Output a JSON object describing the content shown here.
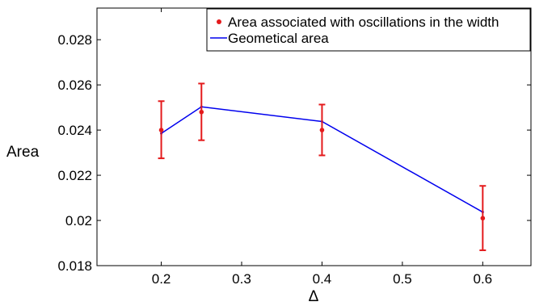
{
  "chart_data": {
    "type": "scatter",
    "xlabel": "Δ",
    "ylabel": "Area",
    "xlim": [
      0.12,
      0.66
    ],
    "ylim": [
      0.018,
      0.0294
    ],
    "x_ticks": [
      0.2,
      0.3,
      0.4,
      0.5,
      0.6
    ],
    "x_tick_labels": [
      "0.2",
      "0.3",
      "0.4",
      "0.5",
      "0.6"
    ],
    "y_ticks": [
      0.018,
      0.02,
      0.022,
      0.024,
      0.026,
      0.028
    ],
    "y_tick_labels": [
      "0.018",
      "0.02",
      "0.022",
      "0.024",
      "0.026",
      "0.028"
    ],
    "grid": false,
    "legend_position": "top-right",
    "series": [
      {
        "name": "Area associated with oscillations in the width",
        "kind": "points-with-error-bars",
        "color": "#e41a1c",
        "x": [
          0.2,
          0.25,
          0.4,
          0.6
        ],
        "y": [
          0.024,
          0.0248,
          0.024,
          0.0201
        ],
        "y_err_low": [
          0.02275,
          0.02355,
          0.02288,
          0.01868
        ],
        "y_err_high": [
          0.02528,
          0.02606,
          0.02513,
          0.02153
        ]
      },
      {
        "name": "Geometical area",
        "kind": "line",
        "color": "#0000ee",
        "x": [
          0.2,
          0.25,
          0.4,
          0.6
        ],
        "y": [
          0.02385,
          0.02503,
          0.02438,
          0.02037
        ]
      }
    ]
  }
}
